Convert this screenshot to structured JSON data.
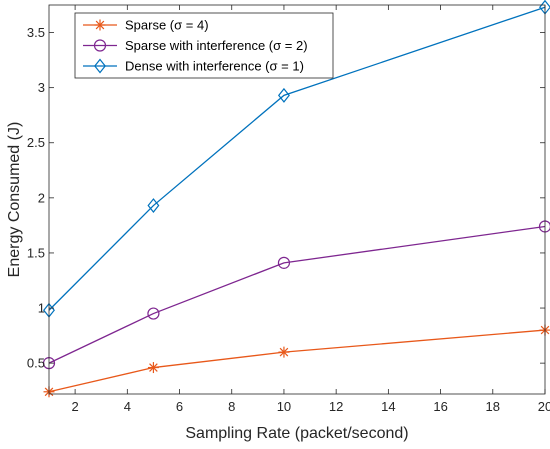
{
  "chart_data": {
    "type": "line",
    "title": "",
    "xlabel": "Sampling Rate (packet/second)",
    "ylabel": "Energy Consumed (J)",
    "xlim": [
      1,
      20
    ],
    "ylim": [
      0.22,
      3.75
    ],
    "xticks": [
      2,
      4,
      6,
      8,
      10,
      12,
      14,
      16,
      18,
      20
    ],
    "yticks": [
      0.5,
      1,
      1.5,
      2,
      2.5,
      3,
      3.5
    ],
    "xtick_labels": [
      "2",
      "4",
      "6",
      "8",
      "10",
      "12",
      "14",
      "16",
      "18",
      "20"
    ],
    "ytick_labels": [
      "0.5",
      "1",
      "1.5",
      "2",
      "2.5",
      "3",
      "3.5"
    ],
    "grid": false,
    "legend_position": "top-left",
    "x": [
      1,
      5,
      10,
      20
    ],
    "series": [
      {
        "name": "Sparse (σ = 4)",
        "values": [
          0.24,
          0.46,
          0.6,
          0.8
        ],
        "color": "#E8581A",
        "marker": "asterisk"
      },
      {
        "name": "Sparse with interference (σ = 2)",
        "values": [
          0.5,
          0.95,
          1.41,
          1.74
        ],
        "color": "#7E2690",
        "marker": "circle"
      },
      {
        "name": "Dense with interference (σ = 1)",
        "values": [
          0.98,
          1.93,
          2.93,
          3.73
        ],
        "color": "#0072BD",
        "marker": "diamond"
      }
    ]
  }
}
